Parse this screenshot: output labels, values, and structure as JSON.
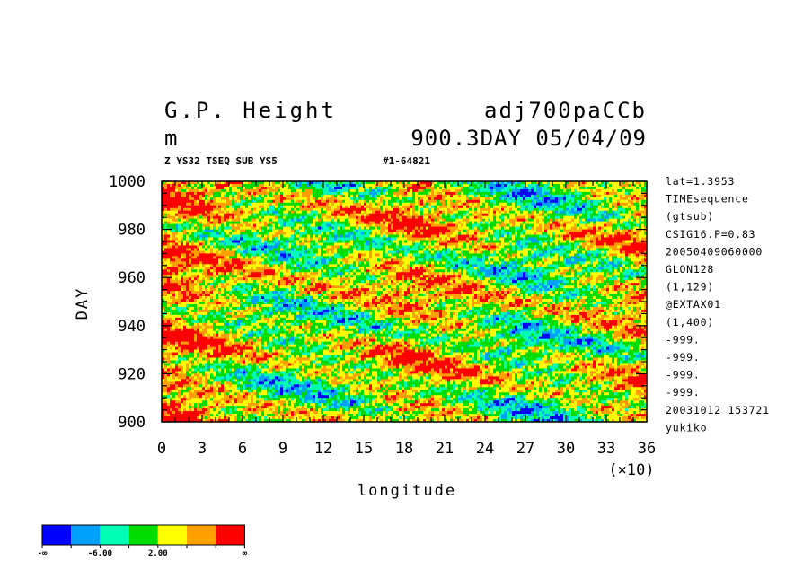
{
  "header": {
    "title_left": "G.P. Height",
    "title_right": "adj700paCCb",
    "unit": "m",
    "subtitle_right": "900.3DAY 05/04/09",
    "small_left": "Z YS32 TSEQ SUB YS5",
    "small_right": "#1-64821"
  },
  "side_info": [
    "lat=1.3953",
    "TIMEsequence",
    "(gtsub)",
    "CSIG16.P=0.83",
    "20050409060000",
    "GLON128",
    "(1,129)",
    "@EXTAX01",
    "(1,400)",
    "-999.",
    "-999.",
    "-999.",
    "-999.",
    "20031012 153721",
    "yukiko"
  ],
  "chart_data": {
    "type": "heatmap",
    "xlabel": "longitude",
    "x_multiplier_label": "(×10)",
    "ylabel": "DAY",
    "xlim": [
      0,
      36
    ],
    "ylim": [
      900,
      1000
    ],
    "x_ticks": [
      0,
      3,
      6,
      9,
      12,
      15,
      18,
      21,
      24,
      27,
      30,
      33,
      36
    ],
    "y_ticks": [
      900,
      920,
      940,
      960,
      980,
      1000
    ],
    "grid": false,
    "color_levels": [
      "#0000ff",
      "#00a0ff",
      "#00ffb4",
      "#00dc00",
      "#ffff00",
      "#ffa000",
      "#ff0000"
    ],
    "colorbar_labels": [
      "-∞",
      "-6.00",
      "2.00",
      "∞"
    ],
    "field_description_levels": {
      "x_approx": [
        0,
        3,
        6,
        9,
        12,
        15,
        18,
        21,
        24,
        27,
        30,
        33,
        36
      ],
      "mean_level_by_x": [
        5.2,
        4.6,
        3.6,
        3.0,
        3.2,
        3.7,
        4.6,
        4.3,
        3.5,
        2.7,
        3.2,
        3.8,
        4.6
      ]
    }
  }
}
